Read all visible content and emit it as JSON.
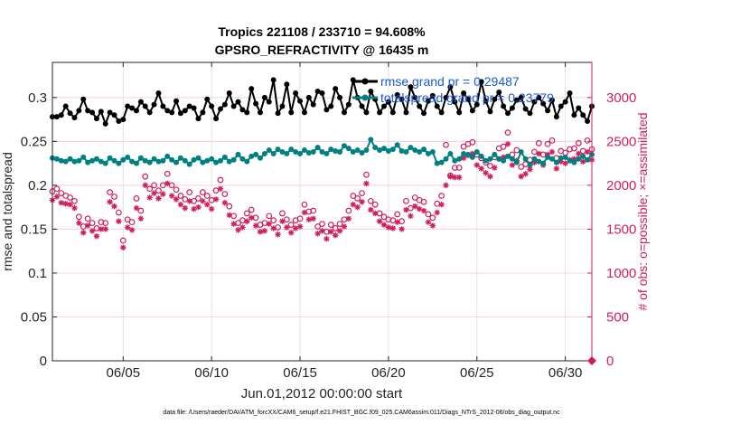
{
  "chart_data": {
    "type": "line",
    "title": [
      "Tropics 221108 / 233710 = 94.608%",
      "GPSRO_REFRACTIVITY @ 16435 m"
    ],
    "xlabel": "Jun.01,2012 00:00:00 start",
    "ylabel_left": "rmse and totalspread",
    "ylabel_right": "# of obs: o=possible; ×=assimilated",
    "footer": "data file: /Users/raeder/DAI/ATM_forcXX/CAM6_setup/f.e21.FHIST_BGC.f09_025.CAM6assim.011/Diags_NTrS_2012-06/obs_diag_output.nc",
    "xlim": [
      1,
      31.5
    ],
    "ylim_left": [
      0,
      0.34
    ],
    "ylim_right": [
      0,
      3400
    ],
    "x_ticks": [
      5,
      10,
      15,
      20,
      25,
      30
    ],
    "x_tick_labels": [
      "06/05",
      "06/10",
      "06/15",
      "06/20",
      "06/25",
      "06/30"
    ],
    "y_left_ticks": [
      0,
      0.05,
      0.1,
      0.15,
      0.2,
      0.25,
      0.3
    ],
    "y_left_tick_labels": [
      "0",
      "0.05",
      "0.1",
      "0.15",
      "0.2",
      "0.25",
      "0.3"
    ],
    "y_right_ticks": [
      0,
      500,
      1000,
      1500,
      2000,
      2500,
      3000
    ],
    "y_right_tick_labels": [
      "0",
      "500",
      "1000",
      "1500",
      "2000",
      "2500",
      "3000"
    ],
    "grid": true,
    "legend": "top-right",
    "t_start": 1.0,
    "dt": 0.25,
    "series": [
      {
        "name": "rmse",
        "legend_label": "rmse grand pr = 0.29487",
        "color": "#000000",
        "axis": "left",
        "values": [
          0.278,
          0.278,
          0.28,
          0.29,
          0.282,
          0.277,
          0.285,
          0.298,
          0.285,
          0.283,
          0.276,
          0.284,
          0.27,
          0.283,
          0.28,
          0.273,
          0.275,
          0.29,
          0.288,
          0.285,
          0.295,
          0.29,
          0.283,
          0.292,
          0.305,
          0.29,
          0.285,
          0.283,
          0.296,
          0.282,
          0.285,
          0.29,
          0.288,
          0.276,
          0.283,
          0.298,
          0.29,
          0.276,
          0.287,
          0.292,
          0.305,
          0.29,
          0.295,
          0.286,
          0.283,
          0.31,
          0.293,
          0.283,
          0.3,
          0.295,
          0.32,
          0.282,
          0.29,
          0.315,
          0.283,
          0.305,
          0.296,
          0.283,
          0.3,
          0.292,
          0.307,
          0.305,
          0.286,
          0.29,
          0.31,
          0.3,
          0.283,
          0.292,
          0.32,
          0.3,
          0.29,
          0.283,
          0.307,
          0.298,
          0.283,
          0.29,
          0.295,
          0.283,
          0.303,
          0.298,
          0.283,
          0.312,
          0.3,
          0.29,
          0.282,
          0.296,
          0.302,
          0.29,
          0.283,
          0.3,
          0.312,
          0.295,
          0.283,
          0.305,
          0.298,
          0.285,
          0.292,
          0.318,
          0.296,
          0.284,
          0.298,
          0.306,
          0.29,
          0.282,
          0.288,
          0.297,
          0.3,
          0.287,
          0.282,
          0.295,
          0.3,
          0.293,
          0.285,
          0.297,
          0.278,
          0.29,
          0.295,
          0.305,
          0.28,
          0.288,
          0.28,
          0.273,
          0.29,
          0.268,
          0.283,
          0.28,
          0.29,
          0.3,
          0.283,
          0.275,
          0.29,
          0.307,
          0.29,
          0.293,
          0.283,
          0.298,
          0.305,
          0.287,
          0.29,
          0.305,
          0.293,
          0.278,
          0.29,
          0.306,
          0.295,
          0.3,
          0.288,
          0.296,
          0.282,
          0.3,
          0.291,
          0.309,
          0.293,
          0.3,
          0.296,
          0.316,
          0.3,
          0.286,
          0.298,
          0.307,
          0.294,
          0.3,
          0.289,
          0.314,
          0.296,
          0.305,
          0.3,
          0.322,
          0.3,
          0.287,
          0.313,
          0.338,
          0.298,
          0.305,
          0.3,
          0.293,
          0.301,
          0.283,
          0.31,
          0.298,
          0.288,
          0.297,
          0.286,
          0.282,
          0.3,
          0.291,
          0.283,
          0.292,
          0.286,
          0.282,
          0.291,
          0.288,
          0.282,
          0.289,
          0.29
        ]
      },
      {
        "name": "totalspread",
        "legend_label": "totalspread grand pr = 0.23779",
        "color": "#008080",
        "axis": "left",
        "values": [
          0.231,
          0.23,
          0.228,
          0.227,
          0.23,
          0.227,
          0.228,
          0.232,
          0.226,
          0.228,
          0.23,
          0.227,
          0.225,
          0.231,
          0.228,
          0.225,
          0.229,
          0.232,
          0.227,
          0.225,
          0.231,
          0.228,
          0.226,
          0.23,
          0.227,
          0.228,
          0.233,
          0.229,
          0.226,
          0.231,
          0.228,
          0.224,
          0.229,
          0.231,
          0.226,
          0.228,
          0.23,
          0.226,
          0.228,
          0.232,
          0.227,
          0.229,
          0.235,
          0.23,
          0.227,
          0.233,
          0.235,
          0.231,
          0.236,
          0.24,
          0.236,
          0.241,
          0.238,
          0.236,
          0.241,
          0.238,
          0.236,
          0.24,
          0.237,
          0.238,
          0.243,
          0.238,
          0.236,
          0.241,
          0.239,
          0.238,
          0.245,
          0.242,
          0.238,
          0.24,
          0.237,
          0.24,
          0.252,
          0.243,
          0.24,
          0.242,
          0.239,
          0.241,
          0.246,
          0.239,
          0.238,
          0.243,
          0.24,
          0.238,
          0.241,
          0.236,
          0.238,
          0.225,
          0.226,
          0.23,
          0.236,
          0.228,
          0.23,
          0.236,
          0.235,
          0.232,
          0.238,
          0.233,
          0.228,
          0.23,
          0.235,
          0.23,
          0.228,
          0.233,
          0.23,
          0.226,
          0.238,
          0.23,
          0.223,
          0.23,
          0.227,
          0.225,
          0.232,
          0.23,
          0.226,
          0.231,
          0.232,
          0.228,
          0.226,
          0.23,
          0.233,
          0.229,
          0.235,
          0.232,
          0.241,
          0.237,
          0.243,
          0.25,
          0.239,
          0.241,
          0.247,
          0.238,
          0.242,
          0.248,
          0.241,
          0.243,
          0.24,
          0.245,
          0.238,
          0.242,
          0.239,
          0.244,
          0.241,
          0.238,
          0.242,
          0.245,
          0.24,
          0.243,
          0.246,
          0.244,
          0.249,
          0.246,
          0.24,
          0.247,
          0.245,
          0.25,
          0.245,
          0.249,
          0.253,
          0.248,
          0.251,
          0.249,
          0.245,
          0.249,
          0.247,
          0.252,
          0.248,
          0.25,
          0.255,
          0.25,
          0.253,
          0.252,
          0.25,
          0.254,
          0.259,
          0.25,
          0.253,
          0.256,
          0.25,
          0.247,
          0.255,
          0.251,
          0.248,
          0.245,
          0.25,
          0.249,
          0.243,
          0.248,
          0.246,
          0.242,
          0.245,
          0.241,
          0.24,
          0.244,
          0.24,
          0.238,
          0.242,
          0.24,
          0.238,
          0.24,
          0.237
        ]
      },
      {
        "name": "possible",
        "color": "#d11f5b",
        "axis": "right",
        "marker": "circle",
        "values": [
          1930,
          1960,
          1910,
          1880,
          1860,
          1820,
          1640,
          1530,
          1620,
          1570,
          1510,
          1580,
          1570,
          1920,
          1870,
          1690,
          1370,
          1610,
          1580,
          1850,
          1710,
          2100,
          1960,
          2000,
          1940,
          2000,
          2130,
          2000,
          1950,
          1880,
          1840,
          1920,
          1820,
          1850,
          1920,
          1880,
          1830,
          1940,
          2060,
          1900,
          1760,
          1650,
          1570,
          1600,
          1680,
          1720,
          1630,
          1550,
          1570,
          1650,
          1600,
          1520,
          1680,
          1610,
          1550,
          1600,
          1620,
          1780,
          1700,
          1710,
          1530,
          1560,
          1470,
          1550,
          1510,
          1560,
          1610,
          1710,
          1880,
          1850,
          1910,
          2120,
          1820,
          1780,
          1680,
          1640,
          1610,
          1600,
          1670,
          1590,
          1820,
          1740,
          1860,
          1830,
          1810,
          1670,
          1630,
          1790,
          1880,
          2460,
          2110,
          2200,
          2200,
          2440,
          2470,
          2490,
          2350,
          2310,
          2260,
          2220,
          2320,
          2420,
          2440,
          2600,
          2350,
          2400,
          2210,
          2240,
          2290,
          2380,
          2480,
          2350,
          2470,
          2510,
          2310,
          2390,
          2370,
          2410,
          2420,
          2480,
          2390,
          2510,
          2410,
          2530,
          2450,
          2480,
          2490,
          2350,
          2440,
          2470,
          2380,
          2330,
          2360,
          2420,
          2420,
          2550,
          2400,
          2450,
          2480,
          2500,
          2500,
          2380,
          2360,
          2450,
          2400,
          2410,
          2510,
          2360,
          2290,
          2300,
          2450,
          2400,
          2370,
          2460,
          2430,
          2420,
          2470,
          2390,
          2400,
          2300,
          2420,
          2390,
          2480,
          2310,
          2350,
          2450,
          2510,
          2390,
          2370,
          2430,
          2390,
          2380,
          2560,
          2460,
          2280,
          2260,
          2190,
          2120,
          2160,
          2210,
          2080,
          2040,
          2090,
          2140,
          2400,
          2200,
          2450,
          2530,
          2420,
          2510,
          2500,
          2450,
          2290,
          2240,
          2190,
          2170,
          2210,
          2110,
          2050
        ]
      },
      {
        "name": "assimilated",
        "color": "#d11f5b",
        "axis": "right",
        "marker": "asterisk",
        "values": [
          1830,
          1870,
          1800,
          1790,
          1780,
          1740,
          1570,
          1460,
          1540,
          1480,
          1420,
          1500,
          1500,
          1810,
          1760,
          1590,
          1290,
          1520,
          1490,
          1740,
          1620,
          2000,
          1860,
          1910,
          1850,
          1900,
          2020,
          1880,
          1840,
          1780,
          1740,
          1820,
          1730,
          1750,
          1820,
          1780,
          1730,
          1840,
          1960,
          1800,
          1660,
          1560,
          1490,
          1520,
          1590,
          1630,
          1540,
          1470,
          1480,
          1560,
          1510,
          1440,
          1590,
          1520,
          1460,
          1510,
          1530,
          1690,
          1610,
          1620,
          1450,
          1480,
          1390,
          1470,
          1430,
          1480,
          1530,
          1620,
          1780,
          1750,
          1810,
          2020,
          1720,
          1680,
          1590,
          1550,
          1520,
          1510,
          1580,
          1500,
          1720,
          1650,
          1760,
          1730,
          1710,
          1580,
          1540,
          1690,
          1780,
          2000,
          2100,
          2090,
          2090,
          2310,
          2340,
          2360,
          2230,
          2190,
          2140,
          2100,
          2200,
          2300,
          2320,
          2470,
          2230,
          2280,
          2100,
          2130,
          2180,
          2260,
          2360,
          2230,
          2350,
          2380,
          2190,
          2270,
          2250,
          2290,
          2300,
          2360,
          2270,
          2380,
          2290,
          2400,
          2320,
          2360,
          2360,
          2230,
          2320,
          2350,
          2260,
          2210,
          2240,
          2300,
          2300,
          2420,
          2280,
          2330,
          2360,
          2380,
          2380,
          2260,
          2240,
          2330,
          2280,
          2290,
          2380,
          2240,
          2170,
          2180,
          2330,
          2280,
          2250,
          2340,
          2310,
          2300,
          2350,
          2270,
          2280,
          2180,
          2300,
          2270,
          2350,
          2190,
          2230,
          2330,
          2380,
          2270,
          2250,
          2310,
          2270,
          2260,
          2430,
          2340,
          2160,
          2140,
          2080,
          2010,
          2050,
          2100,
          1970,
          1940,
          1980,
          2030,
          2280,
          2090,
          2330,
          2400,
          2300,
          2380,
          2370,
          2330,
          2170,
          2130,
          2080,
          2060,
          2100,
          2000,
          1950
        ]
      }
    ]
  }
}
